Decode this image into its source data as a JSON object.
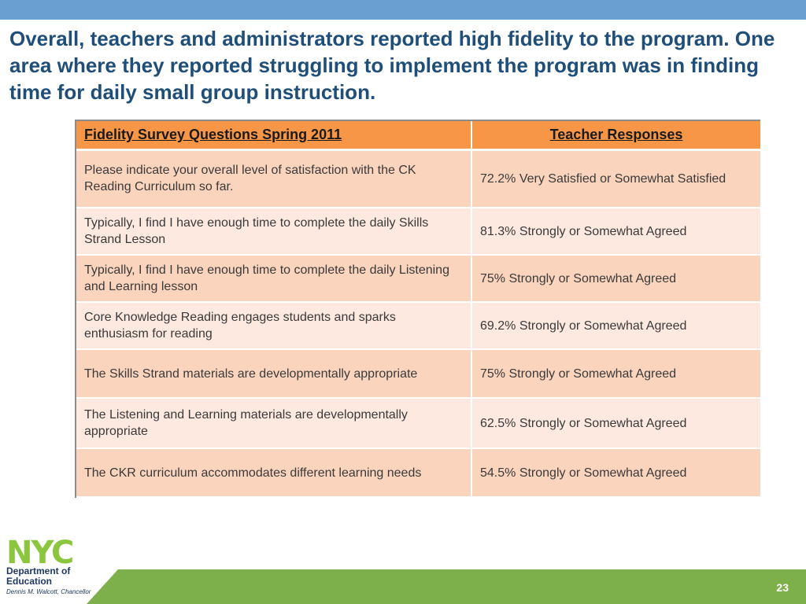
{
  "slide": {
    "title": "Overall, teachers and administrators reported high fidelity to the program.  One area where they reported struggling to implement the program was in finding time for daily small group instruction.",
    "page_number": "23"
  },
  "table": {
    "headers": {
      "question": "Fidelity Survey Questions Spring 2011",
      "response": "Teacher Responses"
    },
    "rows": [
      {
        "question": "Please indicate your overall level of satisfaction with the CK Reading Curriculum so far.",
        "response": "72.2% Very Satisfied or Somewhat Satisfied"
      },
      {
        "question": "Typically, I find I have enough time to complete the daily Skills Strand Lesson",
        "response": "81.3% Strongly or Somewhat Agreed"
      },
      {
        "question": "Typically, I find I have enough time to complete the daily Listening and Learning lesson",
        "response": "75% Strongly or Somewhat Agreed"
      },
      {
        "question": "Core Knowledge Reading engages students and sparks enthusiasm for reading",
        "response": "69.2% Strongly or Somewhat Agreed"
      },
      {
        "question": "The Skills Strand materials are developmentally appropriate",
        "response": "75% Strongly or Somewhat Agreed"
      },
      {
        "question": "The Listening and Learning materials are developmentally appropriate",
        "response": "62.5% Strongly or Somewhat Agreed"
      },
      {
        "question": "The CKR curriculum accommodates different learning needs",
        "response": "54.5% Strongly or Somewhat Agreed"
      }
    ]
  },
  "footer": {
    "logo_text": "NYC",
    "department_line1": "Department of",
    "department_line2": "Education",
    "chancellor": "Dennis M. Walcott, Chancellor"
  },
  "colors": {
    "top_bar": "#6a9fd1",
    "title": "#1f4e79",
    "header_fill": "#f79646",
    "row_odd": "#fbd4bd",
    "row_even": "#fde9e0",
    "bottom_bar": "#7db04a",
    "logo_green": "#8cc63f",
    "logo_blue": "#7ab8e0"
  }
}
